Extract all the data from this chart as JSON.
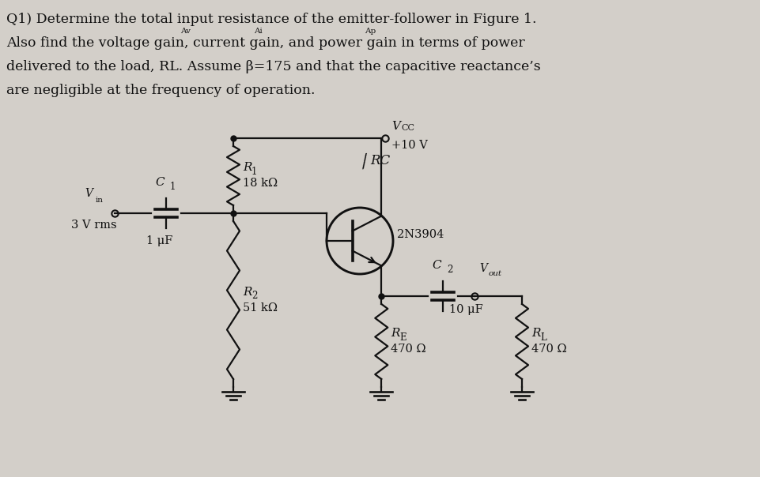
{
  "bg_color": "#d3cfc9",
  "text_color": "#111111",
  "title_lines": [
    "Q1) Determine the total input resistance of the emitter-follower in Figure 1.",
    "Also find the voltage gain, current gain, and power gain in terms of power",
    "delivered to the load, RL. Assume β=175 and that the capacitive reactance’s",
    "are negligible at the frequency of operation."
  ],
  "lw": 1.6
}
